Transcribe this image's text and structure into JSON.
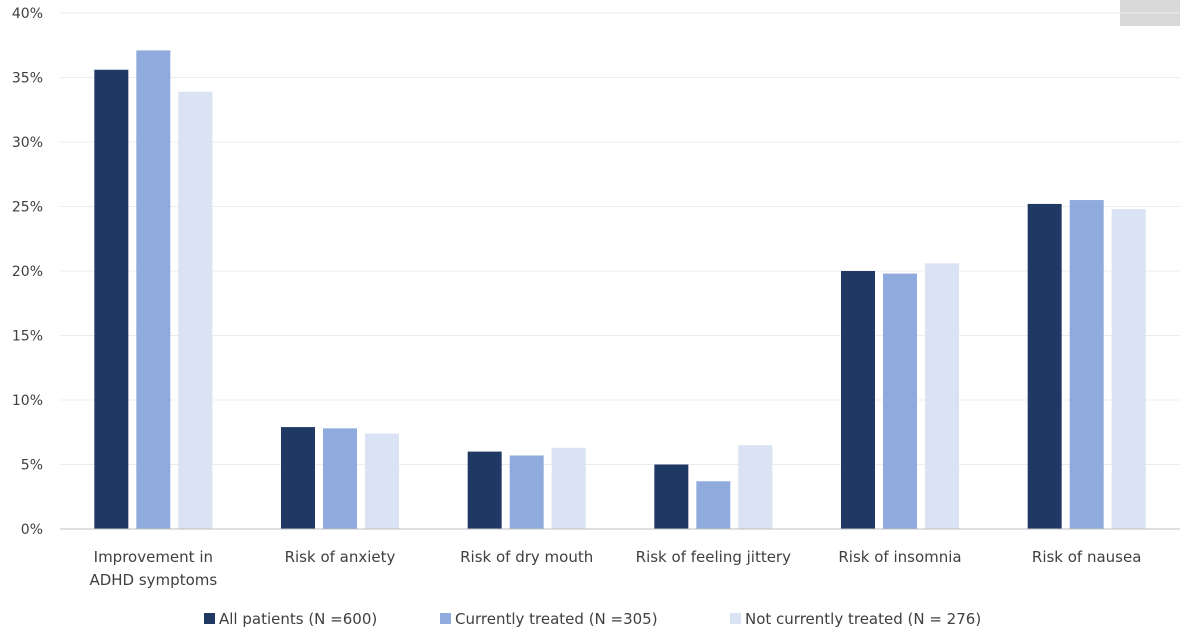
{
  "chart_data": {
    "type": "bar",
    "title": "",
    "xlabel": "",
    "ylabel": "",
    "ylim": [
      0,
      40
    ],
    "y_ticks": [
      "0%",
      "5%",
      "10%",
      "15%",
      "20%",
      "25%",
      "30%",
      "35%",
      "40%"
    ],
    "y_tick_values": [
      0,
      5,
      10,
      15,
      20,
      25,
      30,
      35,
      40
    ],
    "grid": true,
    "legend_position": "bottom",
    "categories": [
      [
        "Improvement in",
        "ADHD symptoms"
      ],
      [
        "Risk of anxiety"
      ],
      [
        "Risk of dry mouth"
      ],
      [
        "Risk of feeling jittery"
      ],
      [
        "Risk of insomnia"
      ],
      [
        "Risk of nausea"
      ]
    ],
    "series": [
      {
        "name": "All patients (N =600)",
        "color": "#203864",
        "values": [
          35.6,
          7.9,
          6.0,
          5.0,
          20.0,
          25.2
        ]
      },
      {
        "name": "Currently treated (N =305)",
        "color": "#8faadc",
        "values": [
          37.1,
          7.8,
          5.7,
          3.7,
          19.8,
          25.5
        ]
      },
      {
        "name": "Not currently treated (N = 276)",
        "color": "#dae3f3",
        "values": [
          33.9,
          7.4,
          6.3,
          6.5,
          20.6,
          24.8
        ]
      }
    ]
  }
}
